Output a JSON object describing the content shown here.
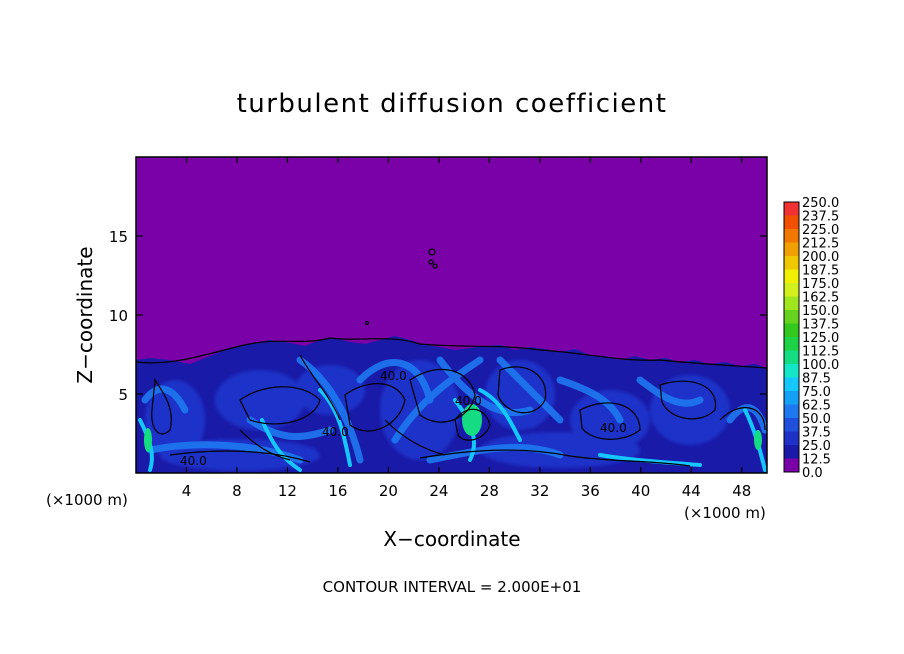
{
  "chart_data": {
    "type": "heatmap",
    "title": "turbulent diffusion coefficient",
    "xlabel": "X−coordinate",
    "ylabel": "Z−coordinate",
    "x_unit": "(×1000 m)",
    "x_unit_right": "(×1000 m)",
    "footer": "CONTOUR INTERVAL = 2.000E+01",
    "xlim": [
      0,
      50
    ],
    "ylim": [
      0,
      20
    ],
    "x_ticks": [
      4,
      8,
      12,
      16,
      20,
      24,
      28,
      32,
      36,
      40,
      44,
      48
    ],
    "y_ticks": [
      5,
      10,
      15
    ],
    "contour_interval": 20,
    "contour_labels": [
      {
        "x": 3.5,
        "y": 0.7,
        "text": "40.0"
      },
      {
        "x": 16.0,
        "y": 2.5,
        "text": "40.0"
      },
      {
        "x": 20.0,
        "y": 6.0,
        "text": "40.0"
      },
      {
        "x": 26.0,
        "y": 4.5,
        "text": "40.0"
      },
      {
        "x": 38.5,
        "y": 2.8,
        "text": "40.0"
      }
    ],
    "colorbar": {
      "levels": [
        "0.0",
        "12.5",
        "25.0",
        "37.5",
        "50.0",
        "62.5",
        "75.0",
        "87.5",
        "100.0",
        "112.5",
        "125.0",
        "137.5",
        "150.0",
        "162.5",
        "175.0",
        "187.5",
        "200.0",
        "212.5",
        "225.0",
        "237.5",
        "250.0"
      ],
      "colors": [
        "#7a00a8",
        "#1a1aa8",
        "#1e32c8",
        "#1e50dc",
        "#1e78f0",
        "#14a0f5",
        "#14c8ff",
        "#14e6c8",
        "#14dc82",
        "#1ed246",
        "#32c81e",
        "#64d21e",
        "#a0e61e",
        "#d2f01e",
        "#f0f000",
        "#f0c800",
        "#f0a000",
        "#f07800",
        "#f05000",
        "#f03232",
        "#f07878"
      ]
    },
    "field": {
      "background_level": "0.0",
      "dominant_levels": [
        "12.5",
        "25.0",
        "37.5",
        "50.0",
        "62.5",
        "75.0",
        "87.5"
      ],
      "peak_level": "112.5",
      "turbulent_layer_top_approx": 8
    }
  }
}
